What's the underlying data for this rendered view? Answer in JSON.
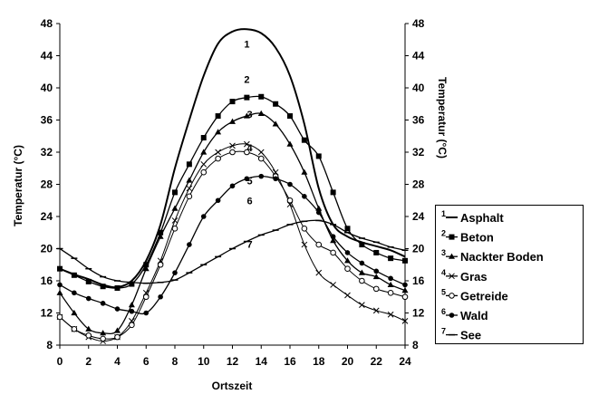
{
  "chart_data": {
    "type": "line",
    "xlabel": "Ortszeit",
    "ylabel_left": "Temperatur (°C)",
    "ylabel_right": "Temperatur (°C)",
    "xlim": [
      0,
      24
    ],
    "ylim": [
      8,
      48
    ],
    "x_ticks": [
      0,
      2,
      4,
      6,
      8,
      10,
      12,
      14,
      16,
      18,
      20,
      22,
      24
    ],
    "y_ticks": [
      8,
      12,
      16,
      20,
      24,
      28,
      32,
      36,
      40,
      44,
      48
    ],
    "grid": false,
    "legend_position": "right",
    "x": [
      0,
      1,
      2,
      3,
      4,
      5,
      6,
      7,
      8,
      9,
      10,
      11,
      12,
      13,
      14,
      15,
      16,
      17,
      18,
      19,
      20,
      21,
      22,
      23,
      24
    ],
    "series": [
      {
        "number": "1",
        "name": "Asphalt",
        "marker": "none",
        "values": [
          17.5,
          16.8,
          16.2,
          15.5,
          15.2,
          16.0,
          18.5,
          23.0,
          30.0,
          36.0,
          41.5,
          45.5,
          47.0,
          47.3,
          46.8,
          45.0,
          41.5,
          35.5,
          27.5,
          23.0,
          21.5,
          20.8,
          20.3,
          19.8,
          19.0
        ]
      },
      {
        "number": "2",
        "name": "Beton",
        "marker": "square",
        "values": [
          17.5,
          16.7,
          15.9,
          15.3,
          15.1,
          15.6,
          18.0,
          22.0,
          27.0,
          30.5,
          33.8,
          36.5,
          38.3,
          38.8,
          38.9,
          38.0,
          36.5,
          33.5,
          31.5,
          27.0,
          22.5,
          20.5,
          19.5,
          18.8,
          18.5
        ]
      },
      {
        "number": "3",
        "name": "Nackter Boden",
        "marker": "triangle",
        "values": [
          14.5,
          12.0,
          10.0,
          9.5,
          9.8,
          13.0,
          17.5,
          21.5,
          25.0,
          28.5,
          32.0,
          34.5,
          35.8,
          36.5,
          36.8,
          35.5,
          33.0,
          29.5,
          25.0,
          21.0,
          18.5,
          17.0,
          16.5,
          15.5,
          14.8
        ]
      },
      {
        "number": "4",
        "name": "Gras",
        "marker": "x",
        "values": [
          11.5,
          10.0,
          9.0,
          8.5,
          9.0,
          11.0,
          14.5,
          18.5,
          23.5,
          27.5,
          30.5,
          32.0,
          32.8,
          33.0,
          32.0,
          29.5,
          25.5,
          20.5,
          17.0,
          15.5,
          14.2,
          13.0,
          12.3,
          11.8,
          11.0
        ]
      },
      {
        "number": "5",
        "name": "Getreide",
        "marker": "circle-open",
        "values": [
          11.5,
          10.0,
          9.2,
          8.8,
          9.0,
          10.5,
          14.0,
          18.0,
          22.5,
          26.5,
          29.5,
          31.2,
          32.0,
          32.0,
          31.2,
          29.0,
          26.0,
          22.5,
          20.5,
          19.5,
          17.5,
          16.0,
          15.0,
          14.5,
          14.0
        ]
      },
      {
        "number": "6",
        "name": "Wald",
        "marker": "circle-filled",
        "values": [
          15.5,
          14.5,
          13.8,
          13.2,
          12.5,
          12.2,
          12.0,
          14.0,
          17.0,
          20.5,
          24.0,
          26.0,
          27.8,
          28.7,
          29.0,
          28.7,
          28.0,
          26.5,
          24.5,
          21.5,
          19.5,
          18.2,
          17.2,
          16.3,
          15.5
        ]
      },
      {
        "number": "7",
        "name": "See",
        "marker": "dash",
        "values": [
          20.0,
          18.8,
          17.5,
          16.5,
          16.0,
          15.8,
          15.7,
          15.8,
          16.1,
          17.0,
          18.0,
          19.0,
          20.0,
          20.9,
          21.7,
          22.3,
          23.0,
          23.4,
          23.5,
          23.0,
          22.0,
          21.3,
          20.8,
          20.2,
          19.8
        ]
      }
    ]
  }
}
